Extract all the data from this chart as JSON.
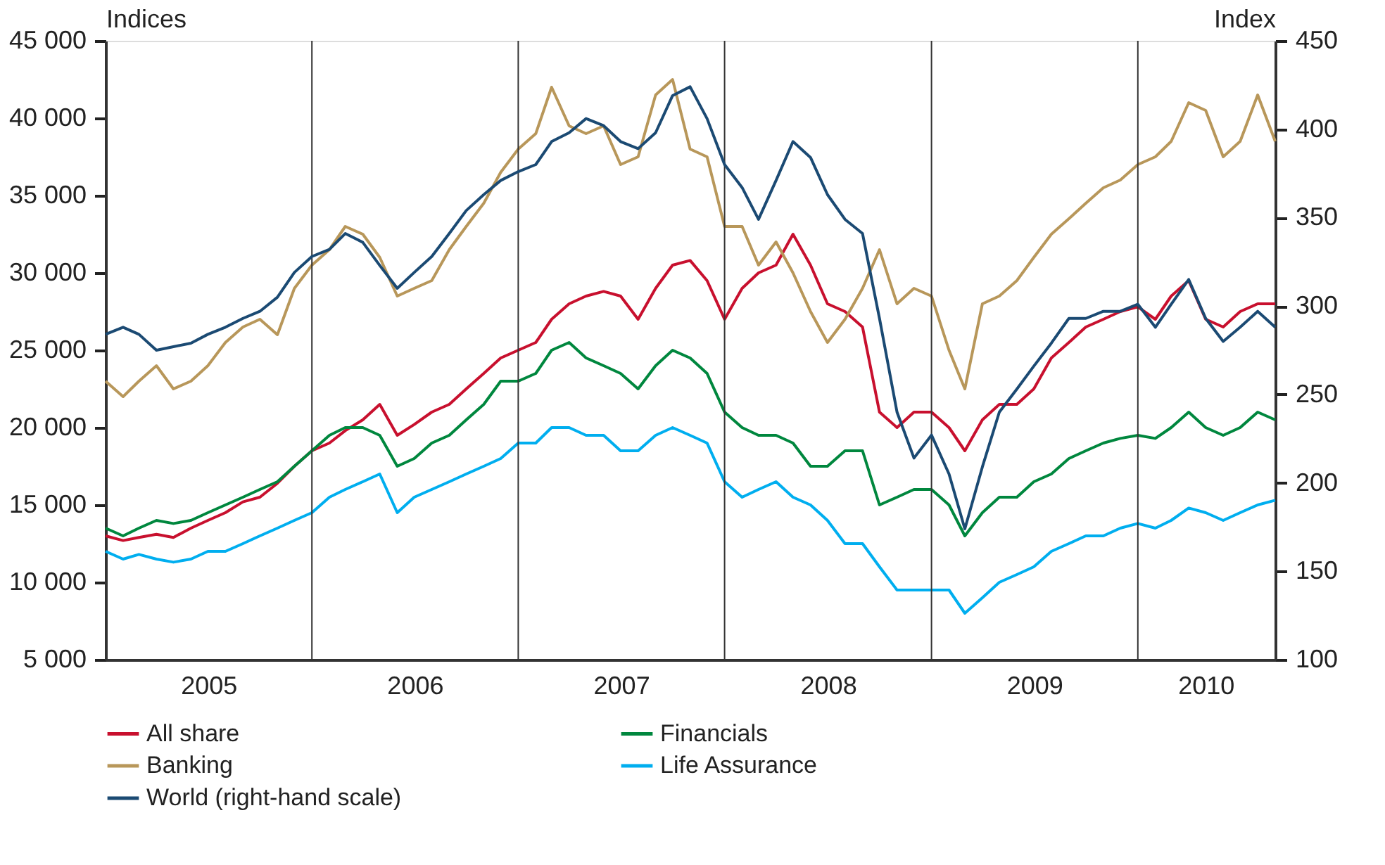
{
  "chart_data": {
    "type": "line",
    "ylabel": "Indices",
    "y2label": "Index",
    "x": [
      "2005-01-01",
      "2005-02-01",
      "2005-03-01",
      "2005-04-01",
      "2005-05-01",
      "2005-06-01",
      "2005-07-01",
      "2005-08-01",
      "2005-09-01",
      "2005-10-01",
      "2005-11-01",
      "2005-12-01",
      "2006-01-01",
      "2006-02-01",
      "2006-03-01",
      "2006-04-01",
      "2006-05-01",
      "2006-06-01",
      "2006-07-01",
      "2006-08-01",
      "2006-09-01",
      "2006-10-01",
      "2006-11-01",
      "2006-12-01",
      "2007-01-01",
      "2007-02-01",
      "2007-03-01",
      "2007-04-01",
      "2007-05-01",
      "2007-06-01",
      "2007-07-01",
      "2007-08-01",
      "2007-09-01",
      "2007-10-01",
      "2007-11-01",
      "2007-12-01",
      "2008-01-01",
      "2008-02-01",
      "2008-03-01",
      "2008-04-01",
      "2008-05-01",
      "2008-06-01",
      "2008-07-01",
      "2008-08-01",
      "2008-09-01",
      "2008-10-01",
      "2008-11-01",
      "2008-12-01",
      "2009-01-01",
      "2009-02-01",
      "2009-03-01",
      "2009-04-01",
      "2009-05-01",
      "2009-06-01",
      "2009-07-01",
      "2009-08-01",
      "2009-09-01",
      "2009-10-01",
      "2009-11-01",
      "2009-12-01",
      "2010-01-01",
      "2010-02-01",
      "2010-03-01",
      "2010-04-01",
      "2010-05-01",
      "2010-06-01",
      "2010-07-01",
      "2010-08-01",
      "2010-09-01"
    ],
    "series": [
      {
        "name": "All share",
        "color": "#c8102e",
        "values": [
          13000,
          12700,
          12900,
          13100,
          12900,
          13500,
          14000,
          14500,
          15200,
          15500,
          16400,
          17500,
          18500,
          19000,
          19800,
          20500,
          21500,
          19500,
          20200,
          21000,
          21500,
          22500,
          23500,
          24500,
          25000,
          25500,
          27000,
          28000,
          28500,
          28800,
          28500,
          27000,
          29000,
          30500,
          30800,
          29500,
          27000,
          29000,
          30000,
          30500,
          32500,
          30500,
          28000,
          27500,
          26500,
          21000,
          20000,
          21000,
          21000,
          20000,
          18500,
          20500,
          21500,
          21500,
          22500,
          24500,
          25500,
          26500,
          27000,
          27500,
          27800,
          27000,
          28500,
          29500,
          27000,
          26500,
          27500,
          28000,
          28000
        ]
      },
      {
        "name": "Financials",
        "color": "#00873e",
        "values": [
          13500,
          13000,
          13500,
          14000,
          13800,
          14000,
          14500,
          15000,
          15500,
          16000,
          16500,
          17500,
          18500,
          19500,
          20000,
          20000,
          19500,
          17500,
          18000,
          19000,
          19500,
          20500,
          21500,
          23000,
          23000,
          23500,
          25000,
          25500,
          24500,
          24000,
          23500,
          22500,
          24000,
          25000,
          24500,
          23500,
          21000,
          20000,
          19500,
          19500,
          19000,
          17500,
          17500,
          18500,
          18500,
          15000,
          15500,
          16000,
          16000,
          15000,
          13000,
          14500,
          15500,
          15500,
          16500,
          17000,
          18000,
          18500,
          19000,
          19300,
          19500,
          19300,
          20000,
          21000,
          20000,
          19500,
          20000,
          21000,
          20500
        ]
      },
      {
        "name": "Banking",
        "color": "#b8975a",
        "values": [
          23000,
          22000,
          23000,
          24000,
          22500,
          23000,
          24000,
          25500,
          26500,
          27000,
          26000,
          29000,
          30500,
          31500,
          33000,
          32500,
          31000,
          28500,
          29000,
          29500,
          31500,
          33000,
          34500,
          36500,
          38000,
          39000,
          42000,
          39500,
          39000,
          39500,
          37000,
          37500,
          41500,
          42500,
          38000,
          37500,
          33000,
          33000,
          30500,
          32000,
          30000,
          27500,
          25500,
          27000,
          29000,
          31500,
          28000,
          29000,
          28500,
          25000,
          22500,
          28000,
          28500,
          29500,
          31000,
          32500,
          33500,
          34500,
          35500,
          36000,
          37000,
          37500,
          38500,
          41000,
          40500,
          37500,
          38500,
          41500,
          38500
        ]
      },
      {
        "name": "Life Assurance",
        "color": "#00aeef",
        "values": [
          12000,
          11500,
          11800,
          11500,
          11300,
          11500,
          12000,
          12000,
          12500,
          13000,
          13500,
          14000,
          14500,
          15500,
          16000,
          16500,
          17000,
          14500,
          15500,
          16000,
          16500,
          17000,
          17500,
          18000,
          19000,
          19000,
          20000,
          20000,
          19500,
          19500,
          18500,
          18500,
          19500,
          20000,
          19500,
          19000,
          16500,
          15500,
          16000,
          16500,
          15500,
          15000,
          14000,
          12500,
          12500,
          11000,
          9500,
          9500,
          9500,
          9500,
          8000,
          9000,
          10000,
          10500,
          11000,
          12000,
          12500,
          13000,
          13000,
          13500,
          13800,
          13500,
          14000,
          14800,
          14500,
          14000,
          14500,
          15000,
          15300
        ]
      },
      {
        "name": "World (right-hand scale)",
        "color": "#1b4a73",
        "axis": "y2",
        "values": [
          284,
          288,
          284,
          275,
          277,
          279,
          284,
          288,
          293,
          297,
          305,
          319,
          328,
          332,
          341,
          336,
          323,
          310,
          319,
          328,
          341,
          354,
          363,
          371,
          376,
          380,
          393,
          398,
          406,
          402,
          393,
          389,
          398,
          419,
          424,
          406,
          380,
          367,
          349,
          371,
          393,
          384,
          363,
          349,
          341,
          293,
          240,
          214,
          227,
          205,
          174,
          209,
          240,
          253,
          266,
          279,
          293,
          293,
          297,
          297,
          301,
          288,
          301,
          315,
          293,
          280,
          288,
          297,
          288
        ]
      }
    ],
    "xlim": [
      "2005-01-01",
      "2010-09-01"
    ],
    "xticks": [
      {
        "value": "2005-07-02",
        "label": "2005"
      },
      {
        "value": "2006-07-02",
        "label": "2006"
      },
      {
        "value": "2007-07-02",
        "label": "2007"
      },
      {
        "value": "2008-07-02",
        "label": "2008"
      },
      {
        "value": "2009-07-02",
        "label": "2009"
      },
      {
        "value": "2010-05-01",
        "label": "2010"
      }
    ],
    "ylim": [
      5000,
      45000
    ],
    "yticks": [
      {
        "value": 5000,
        "label": "5 000"
      },
      {
        "value": 10000,
        "label": "10 000"
      },
      {
        "value": 15000,
        "label": "15 000"
      },
      {
        "value": 20000,
        "label": "20 000"
      },
      {
        "value": 25000,
        "label": "25 000"
      },
      {
        "value": 30000,
        "label": "30 000"
      },
      {
        "value": 35000,
        "label": "35 000"
      },
      {
        "value": 40000,
        "label": "40 000"
      },
      {
        "value": 45000,
        "label": "45 000"
      }
    ],
    "y2lim": [
      100,
      450
    ],
    "y2ticks": [
      100,
      150,
      200,
      250,
      300,
      350,
      400,
      450
    ],
    "ref_lines": [
      {
        "axis": "x",
        "value": "2006-01-01",
        "color": "#333333"
      },
      {
        "axis": "x",
        "value": "2007-01-01",
        "color": "#333333"
      },
      {
        "axis": "x",
        "value": "2008-01-01",
        "color": "#333333"
      },
      {
        "axis": "x",
        "value": "2009-01-01",
        "color": "#333333"
      },
      {
        "axis": "x",
        "value": "2010-01-01",
        "color": "#333333"
      }
    ],
    "legend": "bottom",
    "marker": "none",
    "line_style": "solid"
  }
}
